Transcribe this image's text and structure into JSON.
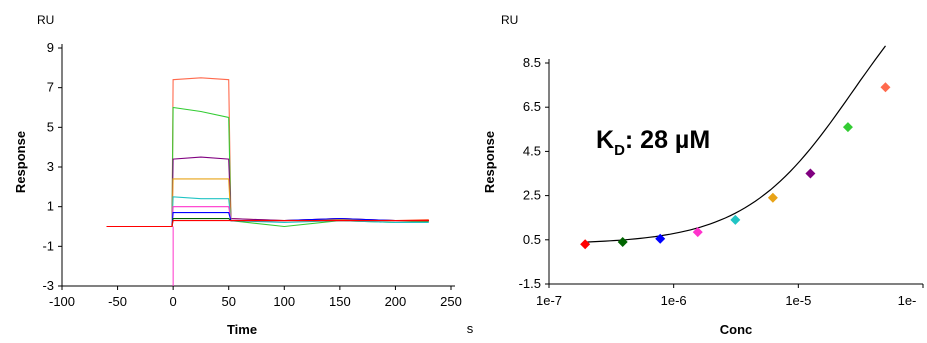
{
  "chart_data": [
    {
      "type": "line",
      "title": "",
      "unit_label": "RU",
      "xlabel": "Time",
      "x_unit": "s",
      "ylabel": "Response",
      "xlim": [
        -100,
        250
      ],
      "ylim": [
        -3,
        9
      ],
      "x_ticks": [
        -100,
        -50,
        0,
        50,
        100,
        150,
        200,
        250
      ],
      "y_ticks": [
        -3,
        -1,
        1,
        3,
        5,
        7,
        9
      ],
      "grid": false,
      "series": [
        {
          "color": "#ff6a4d",
          "values": [
            [
              -60,
              0.0
            ],
            [
              -1,
              0.0
            ],
            [
              0,
              7.4
            ],
            [
              25,
              7.5
            ],
            [
              50,
              7.4
            ],
            [
              52,
              0.4
            ],
            [
              100,
              0.3
            ],
            [
              150,
              0.4
            ],
            [
              200,
              0.3
            ],
            [
              230,
              0.35
            ]
          ]
        },
        {
          "color": "#33cc33",
          "values": [
            [
              -60,
              0.0
            ],
            [
              -1,
              0.0
            ],
            [
              0,
              6.0
            ],
            [
              25,
              5.8
            ],
            [
              50,
              5.5
            ],
            [
              52,
              0.3
            ],
            [
              100,
              0.0
            ],
            [
              150,
              0.3
            ],
            [
              200,
              0.2
            ],
            [
              230,
              0.25
            ]
          ]
        },
        {
          "color": "#800080",
          "values": [
            [
              -60,
              0.0
            ],
            [
              -1,
              0.0
            ],
            [
              0,
              3.4
            ],
            [
              25,
              3.5
            ],
            [
              50,
              3.4
            ],
            [
              52,
              0.4
            ],
            [
              100,
              0.3
            ],
            [
              150,
              0.4
            ],
            [
              200,
              0.3
            ],
            [
              230,
              0.3
            ]
          ]
        },
        {
          "color": "#e8a317",
          "values": [
            [
              -60,
              0.0
            ],
            [
              -1,
              0.0
            ],
            [
              0,
              2.4
            ],
            [
              25,
              2.4
            ],
            [
              50,
              2.4
            ],
            [
              52,
              0.3
            ],
            [
              100,
              0.3
            ],
            [
              150,
              0.35
            ],
            [
              200,
              0.3
            ],
            [
              230,
              0.3
            ]
          ]
        },
        {
          "color": "#20c4c4",
          "values": [
            [
              -60,
              0.0
            ],
            [
              -1,
              0.0
            ],
            [
              0,
              1.5
            ],
            [
              25,
              1.4
            ],
            [
              50,
              1.4
            ],
            [
              52,
              0.3
            ],
            [
              100,
              0.2
            ],
            [
              150,
              0.3
            ],
            [
              200,
              0.2
            ],
            [
              230,
              0.2
            ]
          ]
        },
        {
          "color": "#ff33cc",
          "values": [
            [
              -60,
              0.0
            ],
            [
              -1,
              0.0
            ],
            [
              0,
              1.0
            ],
            [
              25,
              1.0
            ],
            [
              50,
              1.0
            ],
            [
              52,
              0.3
            ],
            [
              100,
              0.3
            ],
            [
              150,
              0.3
            ],
            [
              200,
              0.3
            ],
            [
              230,
              0.3
            ]
          ]
        },
        {
          "color": "#0000ff",
          "values": [
            [
              -60,
              0.0
            ],
            [
              -1,
              0.0
            ],
            [
              0,
              0.7
            ],
            [
              25,
              0.7
            ],
            [
              50,
              0.7
            ],
            [
              52,
              0.3
            ],
            [
              100,
              0.3
            ],
            [
              150,
              0.4
            ],
            [
              200,
              0.3
            ],
            [
              230,
              0.3
            ]
          ]
        },
        {
          "color": "#006400",
          "values": [
            [
              -60,
              0.0
            ],
            [
              -1,
              0.0
            ],
            [
              0,
              0.4
            ],
            [
              25,
              0.4
            ],
            [
              50,
              0.4
            ],
            [
              52,
              0.3
            ],
            [
              100,
              0.3
            ],
            [
              150,
              0.3
            ],
            [
              200,
              0.3
            ],
            [
              230,
              0.3
            ]
          ]
        },
        {
          "color": "#ff0000",
          "values": [
            [
              -60,
              0.0
            ],
            [
              -1,
              0.0
            ],
            [
              0,
              0.3
            ],
            [
              25,
              0.3
            ],
            [
              50,
              0.3
            ],
            [
              52,
              0.3
            ],
            [
              100,
              0.3
            ],
            [
              150,
              0.3
            ],
            [
              200,
              0.3
            ],
            [
              230,
              0.3
            ]
          ]
        }
      ]
    },
    {
      "type": "scatter",
      "title": "",
      "unit_label": "RU",
      "xlabel": "Conc",
      "ylabel": "Response",
      "x_scale": "log",
      "xlim": [
        1e-07,
        0.0001
      ],
      "ylim": [
        -1.5,
        8.5
      ],
      "x_tick_values": [
        1e-07,
        1e-06,
        1e-05,
        0.0001
      ],
      "x_tick_labels": [
        "1e-7",
        "1e-6",
        "1e-5",
        "1e-"
      ],
      "y_ticks": [
        -1.5,
        0.5,
        2.5,
        4.5,
        6.5,
        8.5
      ],
      "y_tick_labels": [
        "-1.5",
        "0.5",
        "2.5",
        "4.5",
        "6.5",
        "8.5"
      ],
      "grid": false,
      "points": [
        {
          "x": 1.95e-07,
          "y": 0.3,
          "color": "#ff0000"
        },
        {
          "x": 3.9e-07,
          "y": 0.4,
          "color": "#006400"
        },
        {
          "x": 7.8e-07,
          "y": 0.55,
          "color": "#0000ff"
        },
        {
          "x": 1.56e-06,
          "y": 0.85,
          "color": "#ff33cc"
        },
        {
          "x": 3.125e-06,
          "y": 1.4,
          "color": "#20c4c4"
        },
        {
          "x": 6.25e-06,
          "y": 2.4,
          "color": "#e8a317"
        },
        {
          "x": 1.25e-05,
          "y": 3.5,
          "color": "#800080"
        },
        {
          "x": 2.5e-05,
          "y": 5.6,
          "color": "#33cc33"
        },
        {
          "x": 5e-05,
          "y": 7.4,
          "color": "#ff6a4d"
        }
      ],
      "fit": {
        "color": "#000000",
        "kd": 2.8e-05,
        "rmax": 14,
        "offset": 0.3
      },
      "annotation": {
        "k": "K",
        "sub": "D",
        "rest": ": 28 µM"
      }
    }
  ]
}
